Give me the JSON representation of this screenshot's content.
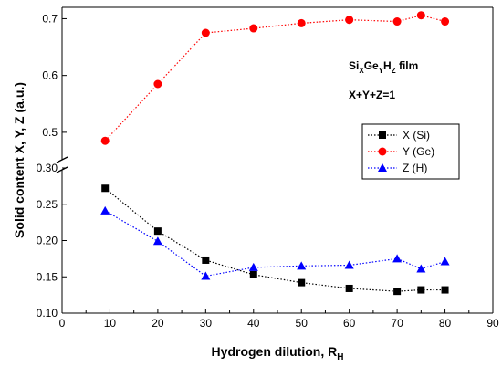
{
  "chart_data": {
    "type": "line",
    "xlabel": "Hydrogen dilution, R",
    "xlabel_sub": "H",
    "ylabel": "Solid content X, Y, Z (a.u.)",
    "xlim": [
      0,
      90
    ],
    "xticks": [
      0,
      10,
      20,
      30,
      40,
      50,
      60,
      70,
      80,
      90
    ],
    "y_axis_break": true,
    "ylim_lower": [
      0.1,
      0.3
    ],
    "yticks_lower": [
      0.1,
      0.15,
      0.2,
      0.25,
      0.3
    ],
    "ylim_upper": [
      0.45,
      0.72
    ],
    "yticks_upper": [
      0.5,
      0.6,
      0.7
    ],
    "series": [
      {
        "name": "X (Si)",
        "color": "#000000",
        "marker": "square",
        "x": [
          9,
          20,
          30,
          40,
          50,
          60,
          70,
          75,
          80
        ],
        "y": [
          0.272,
          0.213,
          0.173,
          0.153,
          0.142,
          0.134,
          0.13,
          0.132,
          0.132
        ]
      },
      {
        "name": "Y (Ge)",
        "color": "#ff0000",
        "marker": "circle",
        "x": [
          9,
          20,
          30,
          40,
          50,
          60,
          70,
          75,
          80
        ],
        "y": [
          0.485,
          0.585,
          0.675,
          0.683,
          0.692,
          0.698,
          0.695,
          0.706,
          0.695
        ]
      },
      {
        "name": "Z (H)",
        "color": "#0000ff",
        "marker": "triangle",
        "x": [
          9,
          20,
          30,
          40,
          50,
          60,
          70,
          75,
          80
        ],
        "y": [
          0.241,
          0.199,
          0.151,
          0.163,
          0.165,
          0.166,
          0.175,
          0.161,
          0.171
        ]
      }
    ],
    "annotations": {
      "film_label": {
        "base": "Si",
        "sub1": "X",
        "mid1": "Ge",
        "sub2": "Y",
        "mid2": "H",
        "sub3": "Z",
        "tail": " film"
      },
      "constraint": "X+Y+Z=1"
    },
    "legend_position": "right-middle",
    "grid": false
  }
}
